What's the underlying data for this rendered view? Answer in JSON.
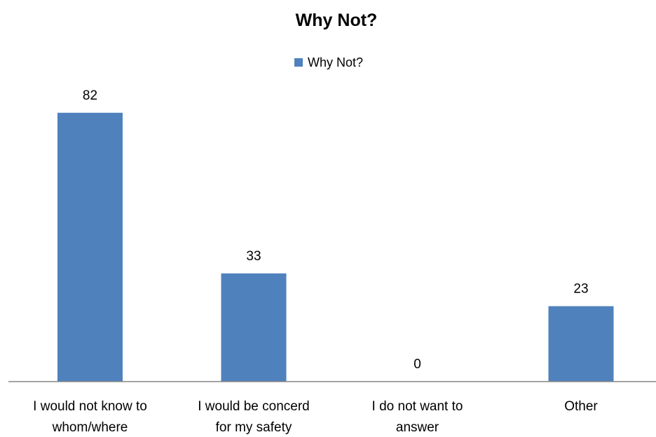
{
  "chart_data": {
    "type": "bar",
    "title": "Why Not?",
    "xlabel": "",
    "ylabel": "",
    "categories": [
      [
        "I would not know to",
        "whom/where"
      ],
      [
        "I would be concerd",
        "for my safety"
      ],
      [
        "I do not want to",
        "answer"
      ],
      [
        "Other"
      ]
    ],
    "series": [
      {
        "name": "Why Not?",
        "values": [
          82,
          33,
          0,
          23
        ],
        "color": "#4F81BD"
      }
    ],
    "ylim": [
      0,
      95
    ],
    "grid": false,
    "legend_position": "top",
    "data_labels": true
  },
  "colors": {
    "axis": "#868686",
    "bar": "#4F81BD",
    "text": "#000000",
    "background": "#FFFFFF"
  }
}
